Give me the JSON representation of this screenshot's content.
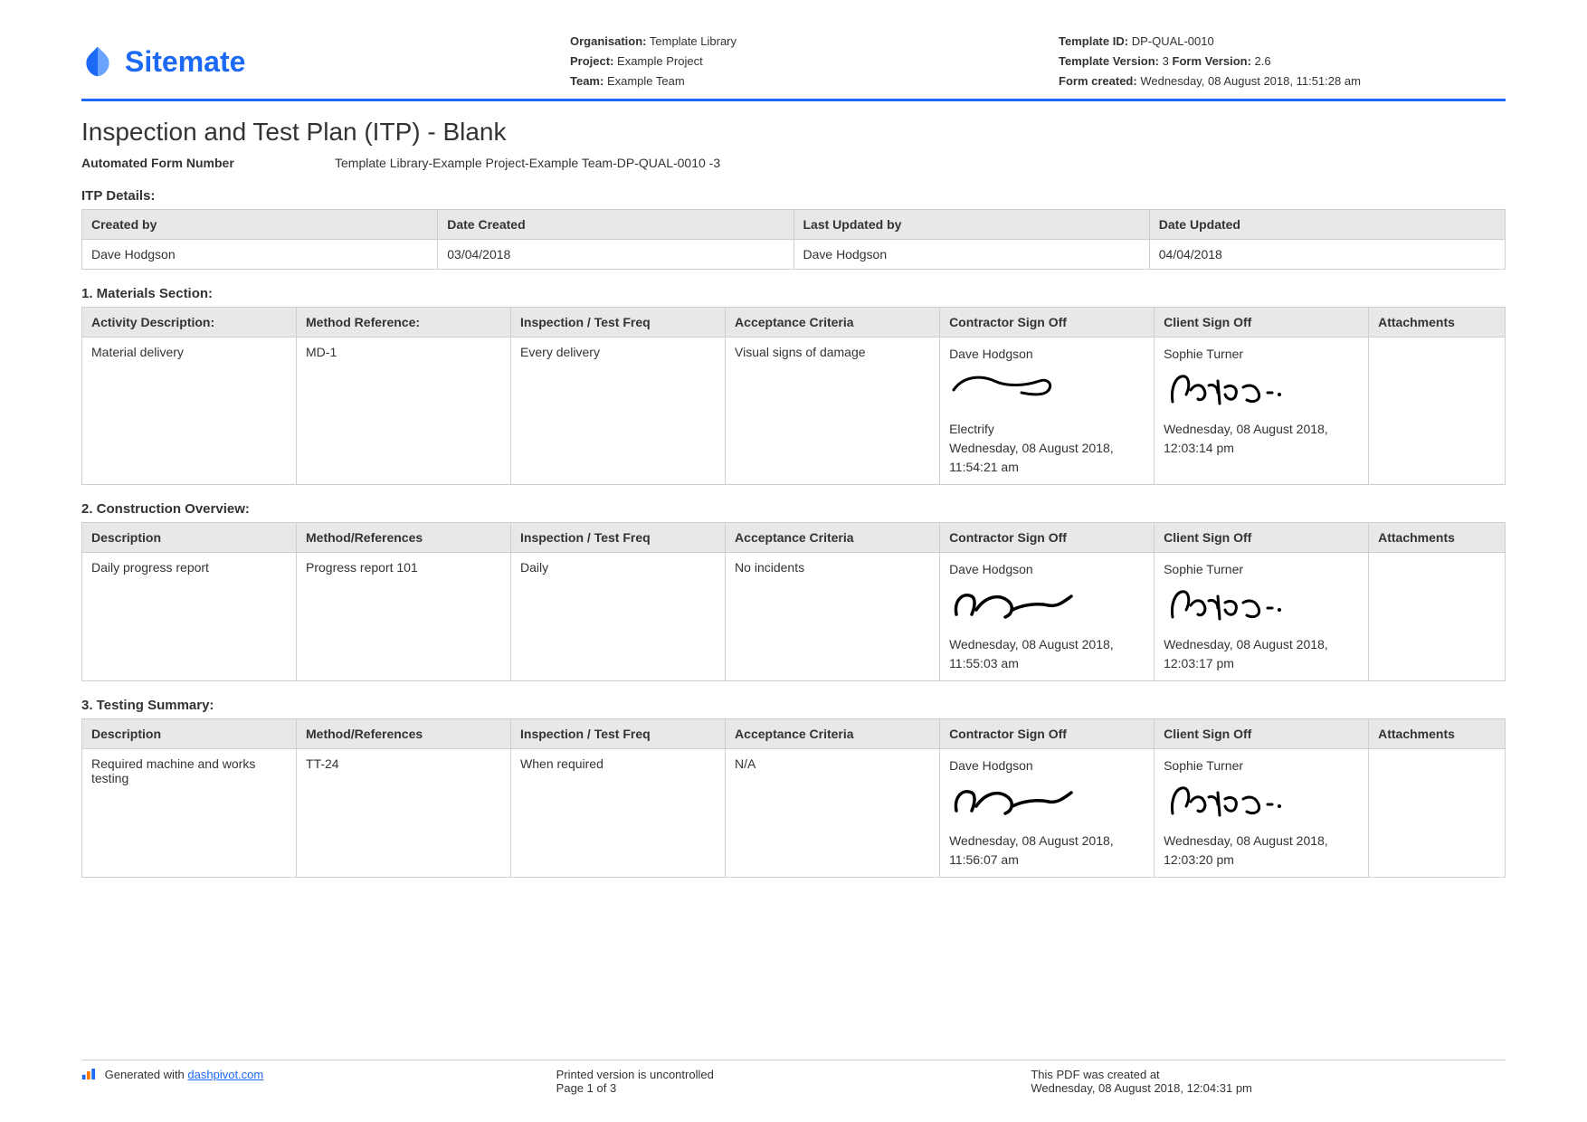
{
  "brand": {
    "name": "Sitemate",
    "color": "#1b69f5"
  },
  "header": {
    "organisation_label": "Organisation:",
    "organisation": "Template Library",
    "project_label": "Project:",
    "project": "Example Project",
    "team_label": "Team:",
    "team": "Example Team",
    "template_id_label": "Template ID:",
    "template_id": "DP-QUAL-0010",
    "template_version_label": "Template Version:",
    "template_version": "3",
    "form_version_label": "Form Version:",
    "form_version": "2.6",
    "form_created_label": "Form created:",
    "form_created": "Wednesday, 08 August 2018, 11:51:28 am"
  },
  "title": "Inspection and Test Plan (ITP) - Blank",
  "form_number": {
    "label": "Automated Form Number",
    "value": "Template Library-Example Project-Example Team-DP-QUAL-0010   -3"
  },
  "itp_details": {
    "section_title": "ITP Details:",
    "cols": [
      "Created by",
      "Date Created",
      "Last Updated by",
      "Date Updated"
    ],
    "row": [
      "Dave Hodgson",
      "03/04/2018",
      "Dave Hodgson",
      "04/04/2018"
    ]
  },
  "sections": [
    {
      "title": "1. Materials Section:",
      "cols": [
        "Activity Description:",
        "Method Reference:",
        "Inspection / Test Freq",
        "Acceptance Criteria",
        "Contractor Sign Off",
        "Client Sign Off",
        "Attachments"
      ],
      "row": {
        "desc": "Material delivery",
        "method": "MD-1",
        "freq": "Every delivery",
        "criteria": "Visual signs of damage",
        "contractor": {
          "name": "Dave Hodgson",
          "company": "Electrify",
          "date": "Wednesday, 08 August 2018, 11:54:21 am",
          "sig": "dave1"
        },
        "client": {
          "name": "Sophie Turner",
          "company": "",
          "date": "Wednesday, 08 August 2018, 12:03:14 pm",
          "sig": "sophie"
        },
        "attachments": ""
      }
    },
    {
      "title": "2. Construction Overview:",
      "cols": [
        "Description",
        "Method/References",
        "Inspection / Test Freq",
        "Acceptance Criteria",
        "Contractor Sign Off",
        "Client Sign Off",
        "Attachments"
      ],
      "row": {
        "desc": "Daily progress report",
        "method": "Progress report 101",
        "freq": "Daily",
        "criteria": "No incidents",
        "contractor": {
          "name": "Dave Hodgson",
          "company": "",
          "date": "Wednesday, 08 August 2018, 11:55:03 am",
          "sig": "dave2"
        },
        "client": {
          "name": "Sophie Turner",
          "company": "",
          "date": "Wednesday, 08 August 2018, 12:03:17 pm",
          "sig": "sophie"
        },
        "attachments": ""
      }
    },
    {
      "title": "3. Testing Summary:",
      "cols": [
        "Description",
        "Method/References",
        "Inspection / Test Freq",
        "Acceptance Criteria",
        "Contractor Sign Off",
        "Client Sign Off",
        "Attachments"
      ],
      "row": {
        "desc": "Required machine and works testing",
        "method": "TT-24",
        "freq": "When required",
        "criteria": "N/A",
        "contractor": {
          "name": "Dave Hodgson",
          "company": "",
          "date": "Wednesday, 08 August 2018, 11:56:07 am",
          "sig": "dave2"
        },
        "client": {
          "name": "Sophie Turner",
          "company": "",
          "date": "Wednesday, 08 August 2018, 12:03:20 pm",
          "sig": "sophie"
        },
        "attachments": ""
      }
    }
  ],
  "footer": {
    "generated_prefix": "Generated with ",
    "generated_link": "dashpivot.com",
    "uncontrolled": "Printed version is uncontrolled",
    "page": "Page 1 of 3",
    "created_label": "This PDF was created at",
    "created_at": "Wednesday, 08 August 2018, 12:04:31 pm"
  },
  "colors": {
    "accent": "#1b69f5",
    "border": "#cfcfcf",
    "th_bg": "#e8e8e8",
    "text": "#333333"
  }
}
